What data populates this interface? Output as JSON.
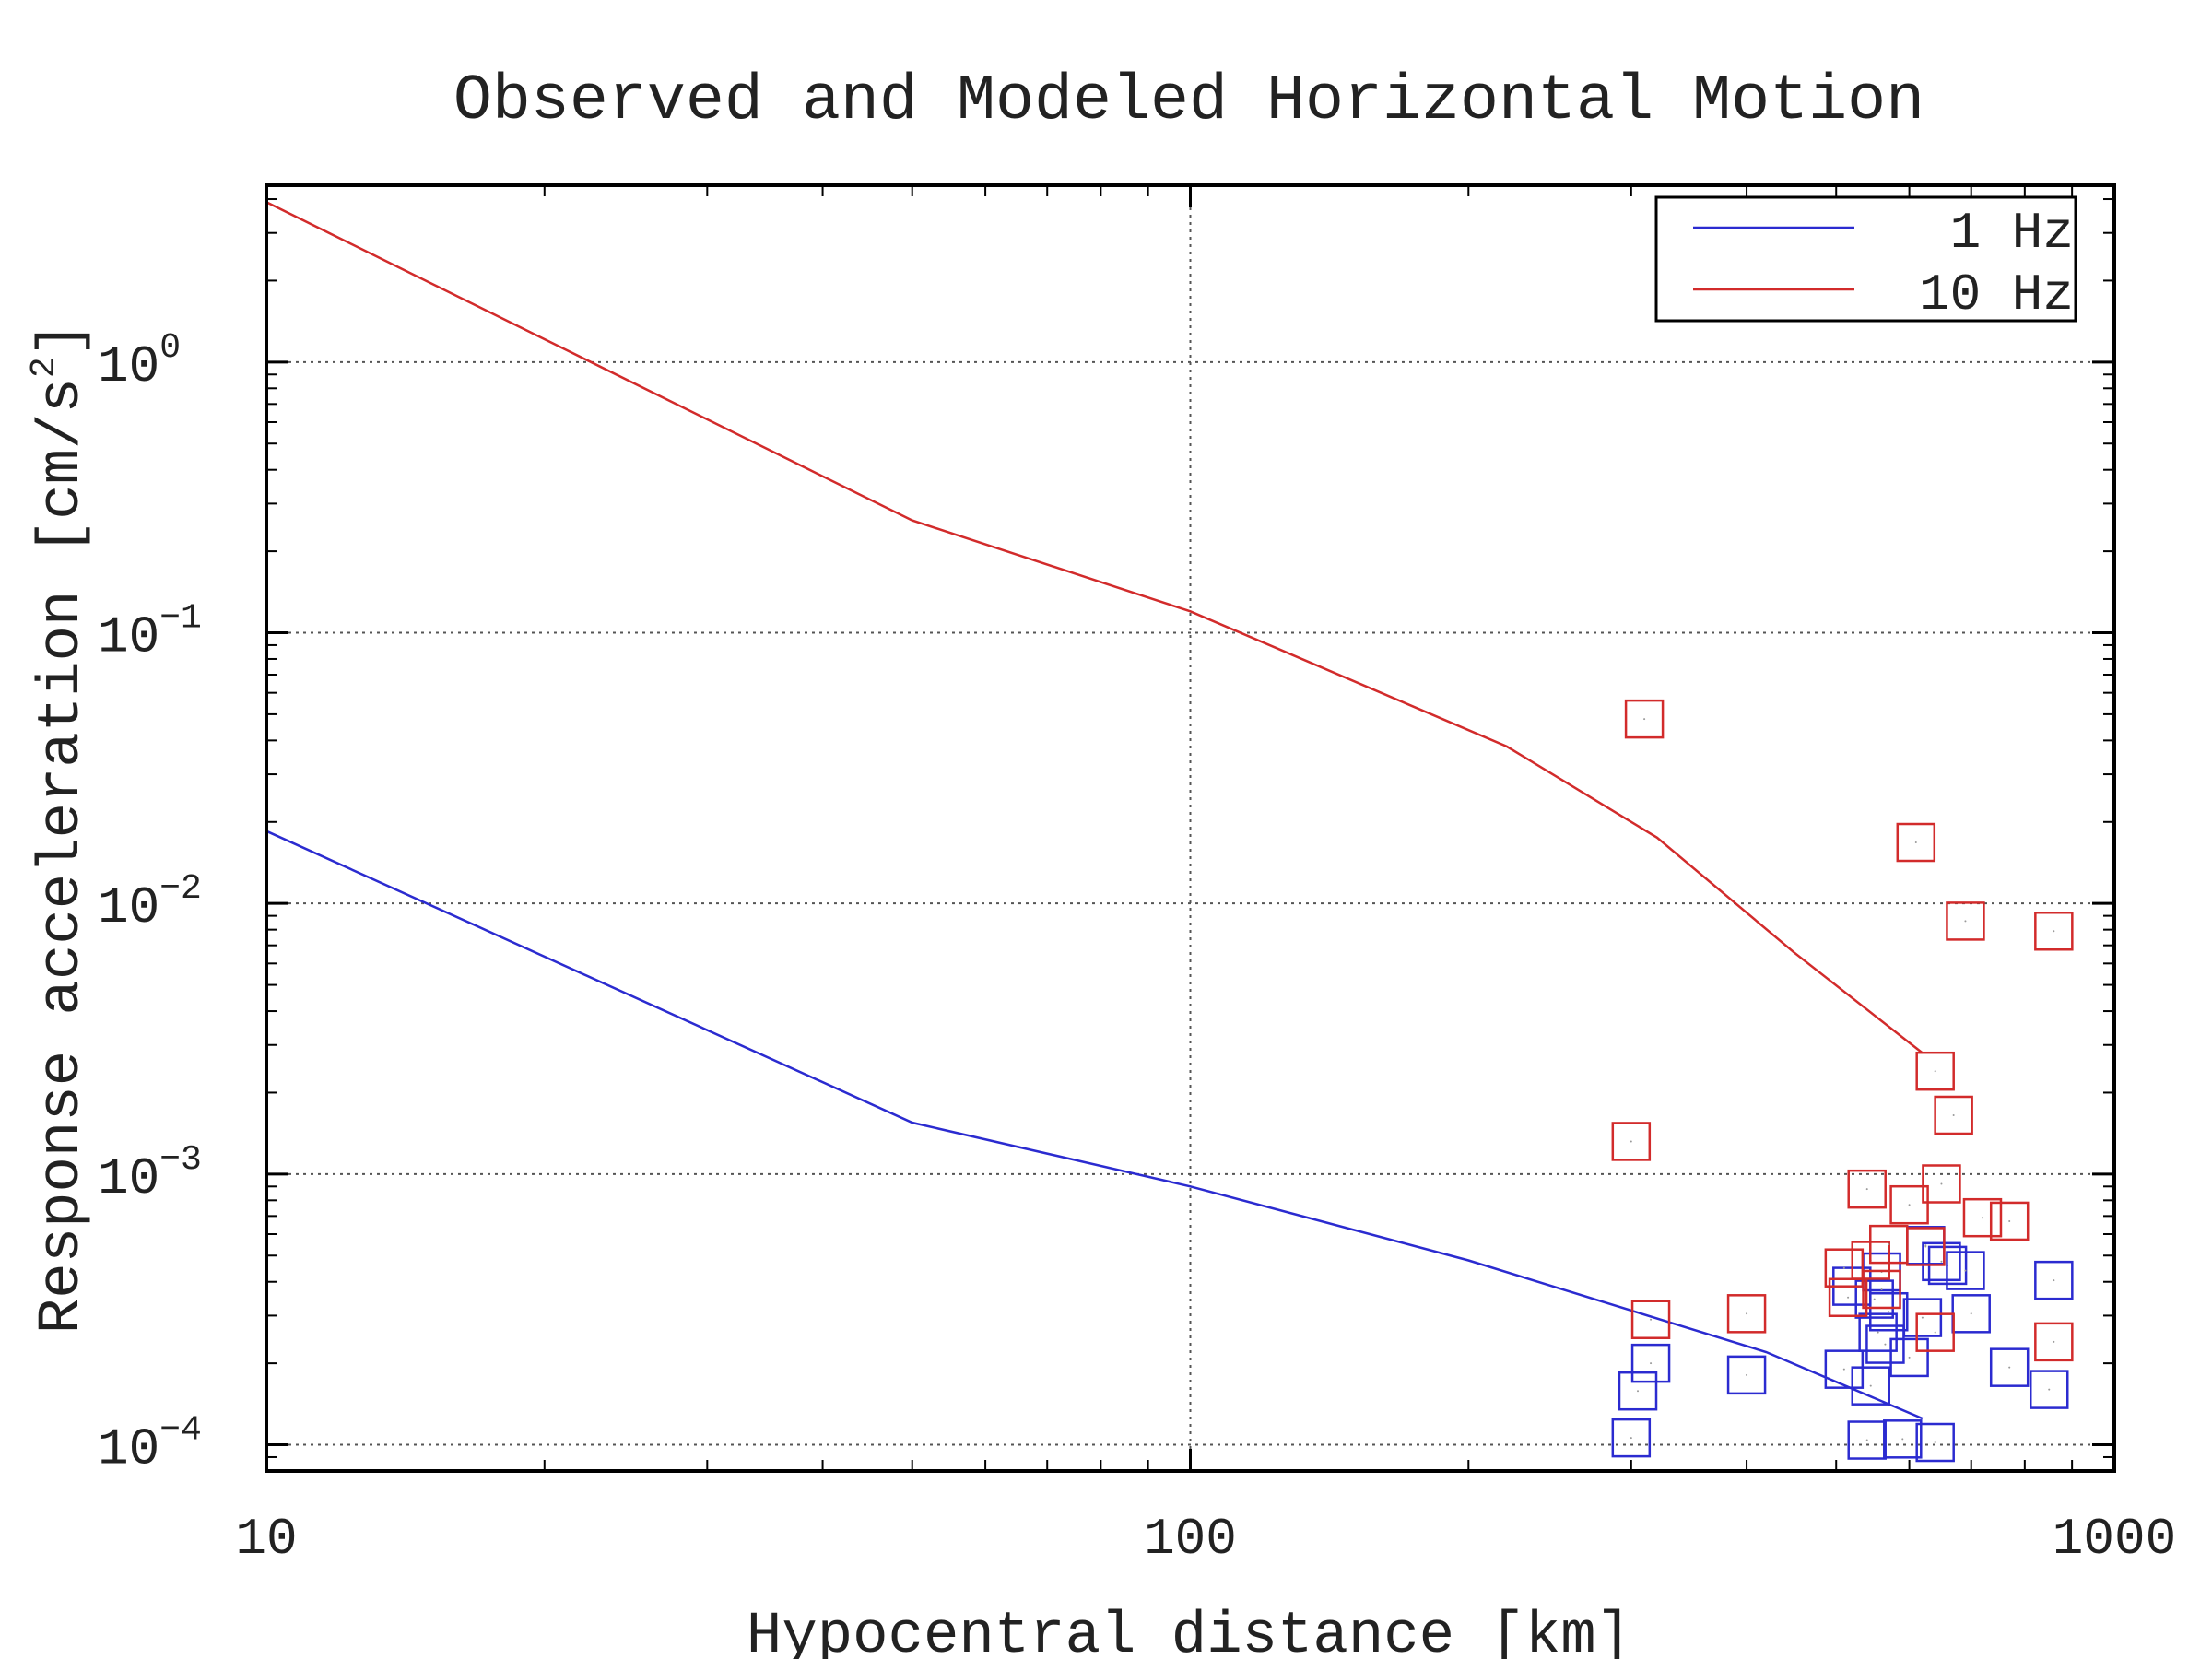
{
  "chart_data": {
    "type": "scatter",
    "title": "Observed and Modeled Horizontal Motion",
    "xlabel": "Hypocentral distance [km]",
    "ylabel_main": "Response acceleration [cm/s",
    "ylabel_sup": "2",
    "ylabel_end": "]",
    "x_scale": "log",
    "y_scale": "log",
    "xlim": [
      10,
      1000
    ],
    "ylim": [
      8e-05,
      4.5
    ],
    "grid": true,
    "legend_position": "top-right",
    "x_ticks": [
      {
        "value": 10,
        "label": "10"
      },
      {
        "value": 100,
        "label": "100"
      },
      {
        "value": 1000,
        "label": "1000"
      }
    ],
    "y_ticks": [
      {
        "value": 1,
        "base": "10",
        "exp": "0"
      },
      {
        "value": 0.1,
        "base": "10",
        "exp": "−1"
      },
      {
        "value": 0.01,
        "base": "10",
        "exp": "−2"
      },
      {
        "value": 0.001,
        "base": "10",
        "exp": "−3"
      },
      {
        "value": 0.0001,
        "base": "10",
        "exp": "−4"
      }
    ],
    "series": [
      {
        "name": "1 Hz",
        "color": "#2b2bd0",
        "line": [
          [
            10,
            0.0185
          ],
          [
            50,
            0.00155
          ],
          [
            100,
            0.0009
          ],
          [
            200,
            0.00048
          ],
          [
            420,
            0.00022
          ],
          [
            620,
            0.000125
          ]
        ],
        "points": [
          [
            300,
            0.000106
          ],
          [
            305,
            0.000158
          ],
          [
            315,
            0.0002
          ],
          [
            400,
            0.000181
          ],
          [
            510,
            0.00019
          ],
          [
            520,
            0.000385
          ],
          [
            540,
            0.000104
          ],
          [
            545,
            0.000165
          ],
          [
            550,
            0.000345
          ],
          [
            555,
            0.00026
          ],
          [
            560,
            0.000435
          ],
          [
            565,
            0.000235
          ],
          [
            570,
            0.00031
          ],
          [
            590,
            0.000105
          ],
          [
            600,
            0.00021
          ],
          [
            620,
            0.000295
          ],
          [
            625,
            0.000545
          ],
          [
            640,
            0.000102
          ],
          [
            650,
            0.000475
          ],
          [
            660,
            0.00046
          ],
          [
            690,
            0.00044
          ],
          [
            700,
            0.000305
          ],
          [
            770,
            0.000193
          ],
          [
            850,
            0.00016
          ],
          [
            860,
            0.000405
          ]
        ]
      },
      {
        "name": "10 Hz",
        "color": "#d22b2b",
        "line": [
          [
            10,
            3.9
          ],
          [
            50,
            0.26
          ],
          [
            100,
            0.12
          ],
          [
            220,
            0.038
          ],
          [
            320,
            0.0175
          ],
          [
            450,
            0.0066
          ],
          [
            620,
            0.0028
          ]
        ],
        "points": [
          [
            300,
            0.00132
          ],
          [
            310,
            0.048
          ],
          [
            315,
            0.00029
          ],
          [
            400,
            0.000305
          ],
          [
            510,
            0.00045
          ],
          [
            515,
            0.00035
          ],
          [
            540,
            0.00088
          ],
          [
            545,
            0.00048
          ],
          [
            560,
            0.000375
          ],
          [
            570,
            0.00055
          ],
          [
            600,
            0.00077
          ],
          [
            610,
            0.0168
          ],
          [
            625,
            0.00054
          ],
          [
            640,
            0.0024
          ],
          [
            640,
            0.00026
          ],
          [
            650,
            0.00092
          ],
          [
            670,
            0.00165
          ],
          [
            690,
            0.0086
          ],
          [
            720,
            0.00069
          ],
          [
            770,
            0.00067
          ],
          [
            860,
            0.0079
          ],
          [
            860,
            0.00024
          ]
        ]
      }
    ]
  }
}
